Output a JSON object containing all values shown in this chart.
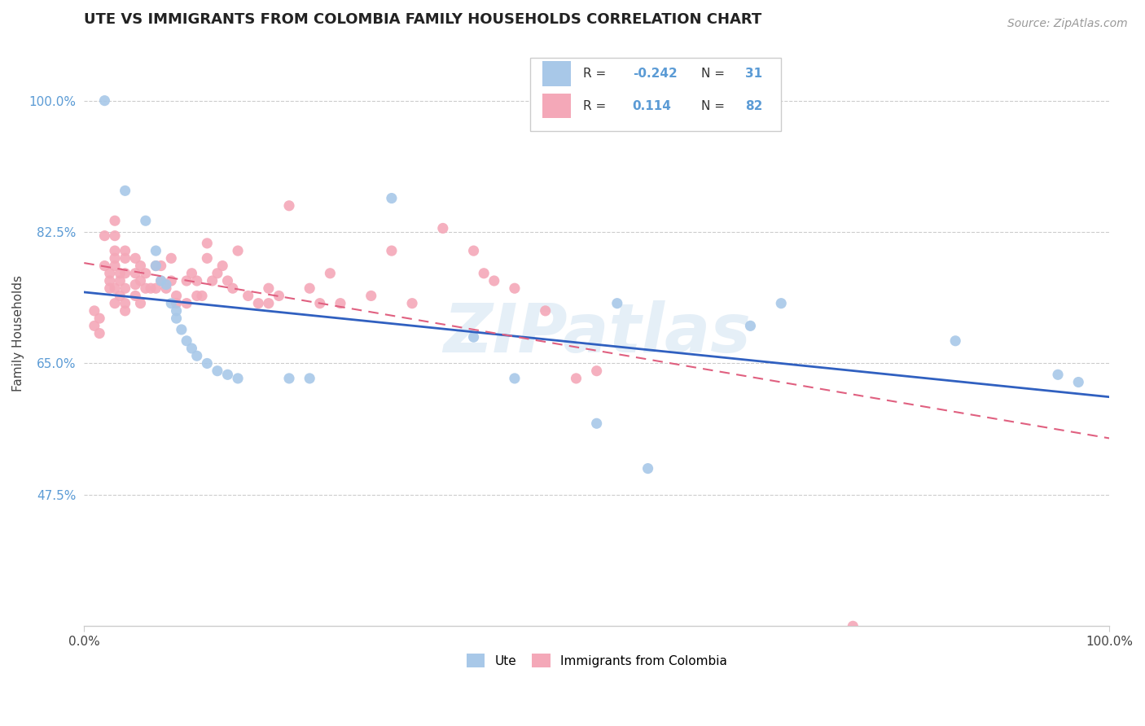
{
  "title": "UTE VS IMMIGRANTS FROM COLOMBIA FAMILY HOUSEHOLDS CORRELATION CHART",
  "source": "Source: ZipAtlas.com",
  "ylabel": "Family Households",
  "xlim": [
    0.0,
    1.0
  ],
  "ylim": [
    0.3,
    1.08
  ],
  "ytick_labels": [
    "47.5%",
    "65.0%",
    "82.5%",
    "100.0%"
  ],
  "ytick_values": [
    0.475,
    0.65,
    0.825,
    1.0
  ],
  "xtick_labels": [
    "0.0%",
    "100.0%"
  ],
  "xtick_values": [
    0.0,
    1.0
  ],
  "watermark": "ZIPatlas",
  "blue_color": "#a8c8e8",
  "pink_color": "#f4a8b8",
  "blue_line_color": "#3060c0",
  "pink_line_color": "#e06080",
  "blue_scatter": [
    [
      0.02,
      1.0
    ],
    [
      0.04,
      0.88
    ],
    [
      0.06,
      0.84
    ],
    [
      0.07,
      0.8
    ],
    [
      0.07,
      0.78
    ],
    [
      0.075,
      0.76
    ],
    [
      0.08,
      0.755
    ],
    [
      0.085,
      0.73
    ],
    [
      0.09,
      0.72
    ],
    [
      0.09,
      0.71
    ],
    [
      0.095,
      0.695
    ],
    [
      0.1,
      0.68
    ],
    [
      0.105,
      0.67
    ],
    [
      0.11,
      0.66
    ],
    [
      0.12,
      0.65
    ],
    [
      0.13,
      0.64
    ],
    [
      0.14,
      0.635
    ],
    [
      0.15,
      0.63
    ],
    [
      0.2,
      0.63
    ],
    [
      0.22,
      0.63
    ],
    [
      0.3,
      0.87
    ],
    [
      0.38,
      0.685
    ],
    [
      0.42,
      0.63
    ],
    [
      0.5,
      0.57
    ],
    [
      0.52,
      0.73
    ],
    [
      0.55,
      0.51
    ],
    [
      0.65,
      0.7
    ],
    [
      0.68,
      0.73
    ],
    [
      0.85,
      0.68
    ],
    [
      0.95,
      0.635
    ],
    [
      0.97,
      0.625
    ]
  ],
  "pink_scatter": [
    [
      0.01,
      0.72
    ],
    [
      0.01,
      0.7
    ],
    [
      0.015,
      0.71
    ],
    [
      0.015,
      0.69
    ],
    [
      0.02,
      0.82
    ],
    [
      0.02,
      0.78
    ],
    [
      0.025,
      0.77
    ],
    [
      0.025,
      0.76
    ],
    [
      0.025,
      0.75
    ],
    [
      0.03,
      0.84
    ],
    [
      0.03,
      0.82
    ],
    [
      0.03,
      0.8
    ],
    [
      0.03,
      0.79
    ],
    [
      0.03,
      0.78
    ],
    [
      0.03,
      0.75
    ],
    [
      0.03,
      0.73
    ],
    [
      0.035,
      0.77
    ],
    [
      0.035,
      0.76
    ],
    [
      0.035,
      0.74
    ],
    [
      0.04,
      0.8
    ],
    [
      0.04,
      0.79
    ],
    [
      0.04,
      0.77
    ],
    [
      0.04,
      0.75
    ],
    [
      0.04,
      0.73
    ],
    [
      0.04,
      0.72
    ],
    [
      0.05,
      0.79
    ],
    [
      0.05,
      0.77
    ],
    [
      0.05,
      0.755
    ],
    [
      0.05,
      0.74
    ],
    [
      0.055,
      0.78
    ],
    [
      0.055,
      0.76
    ],
    [
      0.055,
      0.73
    ],
    [
      0.06,
      0.77
    ],
    [
      0.06,
      0.75
    ],
    [
      0.065,
      0.75
    ],
    [
      0.07,
      0.78
    ],
    [
      0.07,
      0.75
    ],
    [
      0.075,
      0.78
    ],
    [
      0.075,
      0.76
    ],
    [
      0.08,
      0.75
    ],
    [
      0.085,
      0.79
    ],
    [
      0.085,
      0.76
    ],
    [
      0.09,
      0.74
    ],
    [
      0.09,
      0.73
    ],
    [
      0.1,
      0.76
    ],
    [
      0.1,
      0.73
    ],
    [
      0.105,
      0.77
    ],
    [
      0.11,
      0.76
    ],
    [
      0.11,
      0.74
    ],
    [
      0.115,
      0.74
    ],
    [
      0.12,
      0.81
    ],
    [
      0.12,
      0.79
    ],
    [
      0.125,
      0.76
    ],
    [
      0.13,
      0.77
    ],
    [
      0.135,
      0.78
    ],
    [
      0.14,
      0.76
    ],
    [
      0.145,
      0.75
    ],
    [
      0.15,
      0.8
    ],
    [
      0.16,
      0.74
    ],
    [
      0.17,
      0.73
    ],
    [
      0.18,
      0.75
    ],
    [
      0.18,
      0.73
    ],
    [
      0.19,
      0.74
    ],
    [
      0.2,
      0.86
    ],
    [
      0.22,
      0.75
    ],
    [
      0.23,
      0.73
    ],
    [
      0.24,
      0.77
    ],
    [
      0.25,
      0.73
    ],
    [
      0.28,
      0.74
    ],
    [
      0.3,
      0.8
    ],
    [
      0.32,
      0.73
    ],
    [
      0.35,
      0.83
    ],
    [
      0.38,
      0.8
    ],
    [
      0.39,
      0.77
    ],
    [
      0.4,
      0.76
    ],
    [
      0.42,
      0.75
    ],
    [
      0.45,
      0.72
    ],
    [
      0.48,
      0.63
    ],
    [
      0.5,
      0.64
    ],
    [
      0.75,
      0.3
    ]
  ],
  "title_fontsize": 13,
  "axis_fontsize": 11,
  "tick_fontsize": 11,
  "source_fontsize": 10,
  "legend_fontsize": 11
}
